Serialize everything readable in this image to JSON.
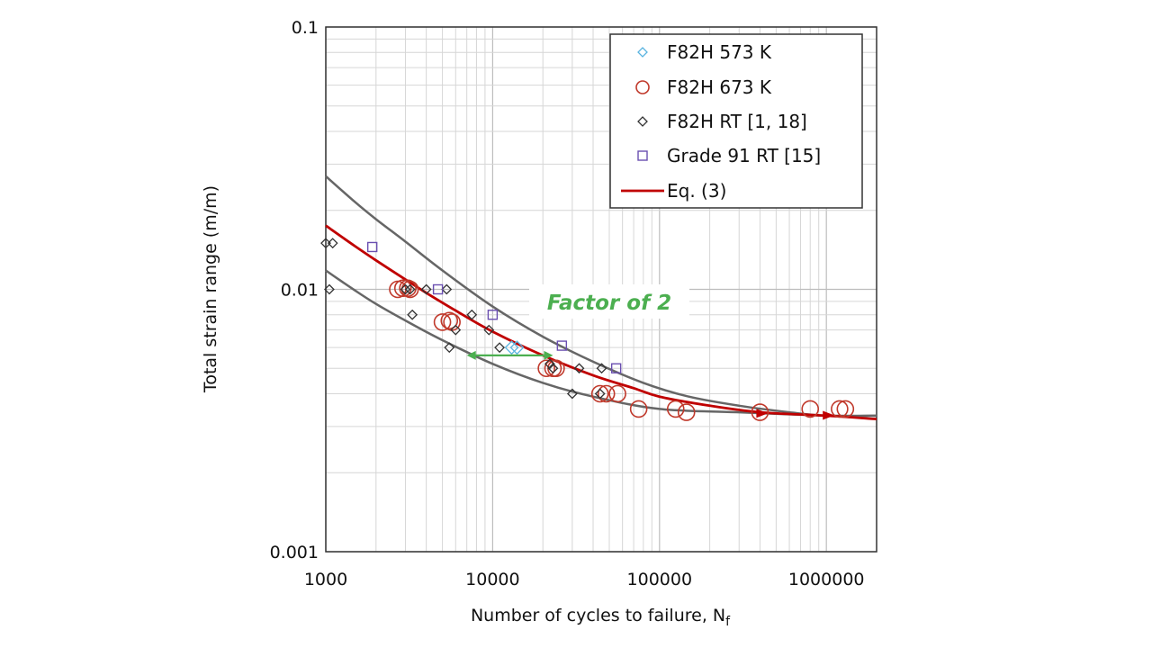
{
  "chart_data": {
    "type": "scatter",
    "title": "",
    "xlabel": "Number of cycles to failure, N",
    "xlabel_subscript": "f",
    "ylabel": "Total strain range (m/m)",
    "x_scale": "log",
    "y_scale": "log",
    "xlim": [
      1000,
      2000000
    ],
    "ylim": [
      0.001,
      0.1
    ],
    "x_ticks": [
      1000,
      10000,
      100000,
      1000000
    ],
    "x_tick_labels": [
      "1000",
      "10000",
      "100000",
      "1000000"
    ],
    "y_ticks": [
      0.001,
      0.01,
      0.1
    ],
    "y_tick_labels": [
      "0.001",
      "0.01",
      "0.1"
    ],
    "grid": "major and minor",
    "legend_position": "top-right",
    "colors": {
      "f82h_573": "#5ab4e0",
      "f82h_673": "#c0392b",
      "f82h_rt": "#333333",
      "grade91": "#6a4fb0",
      "equation": "#c00000",
      "bounds": "#666666",
      "annotation": "#4caf50"
    },
    "series": [
      {
        "name": "F82H 573 K",
        "marker": "diamond",
        "points": [
          [
            13000,
            0.006
          ],
          [
            14000,
            0.006
          ]
        ]
      },
      {
        "name": "F82H 673 K",
        "marker": "circle",
        "points": [
          [
            2700,
            0.01
          ],
          [
            2900,
            0.0101
          ],
          [
            3100,
            0.0101
          ],
          [
            3200,
            0.01
          ],
          [
            5000,
            0.0075
          ],
          [
            5500,
            0.0076
          ],
          [
            5700,
            0.0075
          ],
          [
            21000,
            0.005
          ],
          [
            23000,
            0.005
          ],
          [
            24000,
            0.005
          ],
          [
            44000,
            0.004
          ],
          [
            48000,
            0.004
          ],
          [
            56000,
            0.004
          ],
          [
            75000,
            0.0035
          ],
          [
            125000,
            0.0035
          ],
          [
            145000,
            0.0034
          ],
          [
            400000,
            0.0034
          ],
          [
            800000,
            0.0035
          ],
          [
            1200000,
            0.0035
          ],
          [
            1300000,
            0.0035
          ]
        ]
      },
      {
        "name": "F82H RT [1, 18]",
        "marker": "diamond",
        "points": [
          [
            1000,
            0.015
          ],
          [
            1100,
            0.015
          ],
          [
            1050,
            0.01
          ],
          [
            3000,
            0.01
          ],
          [
            3200,
            0.01
          ],
          [
            3300,
            0.008
          ],
          [
            4000,
            0.01
          ],
          [
            5300,
            0.01
          ],
          [
            5500,
            0.006
          ],
          [
            6000,
            0.007
          ],
          [
            7500,
            0.008
          ],
          [
            9500,
            0.007
          ],
          [
            11000,
            0.006
          ],
          [
            22000,
            0.0052
          ],
          [
            23000,
            0.005
          ],
          [
            33000,
            0.005
          ],
          [
            30000,
            0.004
          ],
          [
            44000,
            0.004
          ],
          [
            45000,
            0.005
          ]
        ]
      },
      {
        "name": "Grade 91 RT [15]",
        "marker": "square",
        "points": [
          [
            1900,
            0.0145
          ],
          [
            4700,
            0.01
          ],
          [
            10000,
            0.008
          ],
          [
            26000,
            0.0061
          ],
          [
            55000,
            0.005
          ]
        ]
      },
      {
        "name": "Eq. (3)",
        "marker": "line",
        "points": [
          [
            1000,
            0.0175
          ],
          [
            1500,
            0.0146
          ],
          [
            2000,
            0.0129
          ],
          [
            3000,
            0.0109
          ],
          [
            4000,
            0.0097
          ],
          [
            6000,
            0.0083
          ],
          [
            10000,
            0.0069
          ],
          [
            20000,
            0.0056
          ],
          [
            40000,
            0.0047
          ],
          [
            70000,
            0.0042
          ],
          [
            100000,
            0.0039
          ],
          [
            200000,
            0.0036
          ],
          [
            400000,
            0.0034
          ],
          [
            1000000,
            0.0033
          ],
          [
            2000000,
            0.0032
          ]
        ]
      }
    ],
    "bound_lines": [
      {
        "points": [
          [
            1000,
            0.027
          ],
          [
            1500,
            0.0215
          ],
          [
            2000,
            0.0185
          ],
          [
            3000,
            0.0152
          ],
          [
            5000,
            0.0118
          ],
          [
            10000,
            0.0086
          ],
          [
            20000,
            0.0066
          ],
          [
            40000,
            0.0053
          ],
          [
            80000,
            0.0044
          ],
          [
            150000,
            0.0039
          ],
          [
            300000,
            0.0036
          ],
          [
            600000,
            0.0034
          ],
          [
            1000000,
            0.0033
          ],
          [
            2000000,
            0.0033
          ]
        ]
      },
      {
        "points": [
          [
            1000,
            0.0118
          ],
          [
            1500,
            0.0099
          ],
          [
            2000,
            0.0088
          ],
          [
            3000,
            0.0076
          ],
          [
            5000,
            0.0064
          ],
          [
            10000,
            0.0052
          ],
          [
            20000,
            0.0044
          ],
          [
            40000,
            0.0039
          ],
          [
            100000,
            0.0035
          ],
          [
            300000,
            0.0034
          ],
          [
            1000000,
            0.0033
          ],
          [
            2000000,
            0.0033
          ]
        ]
      }
    ],
    "annotation": {
      "text": "Factor of 2",
      "arrow_from": [
        7000,
        0.0056
      ],
      "arrow_to": [
        23000,
        0.0056
      ]
    }
  }
}
